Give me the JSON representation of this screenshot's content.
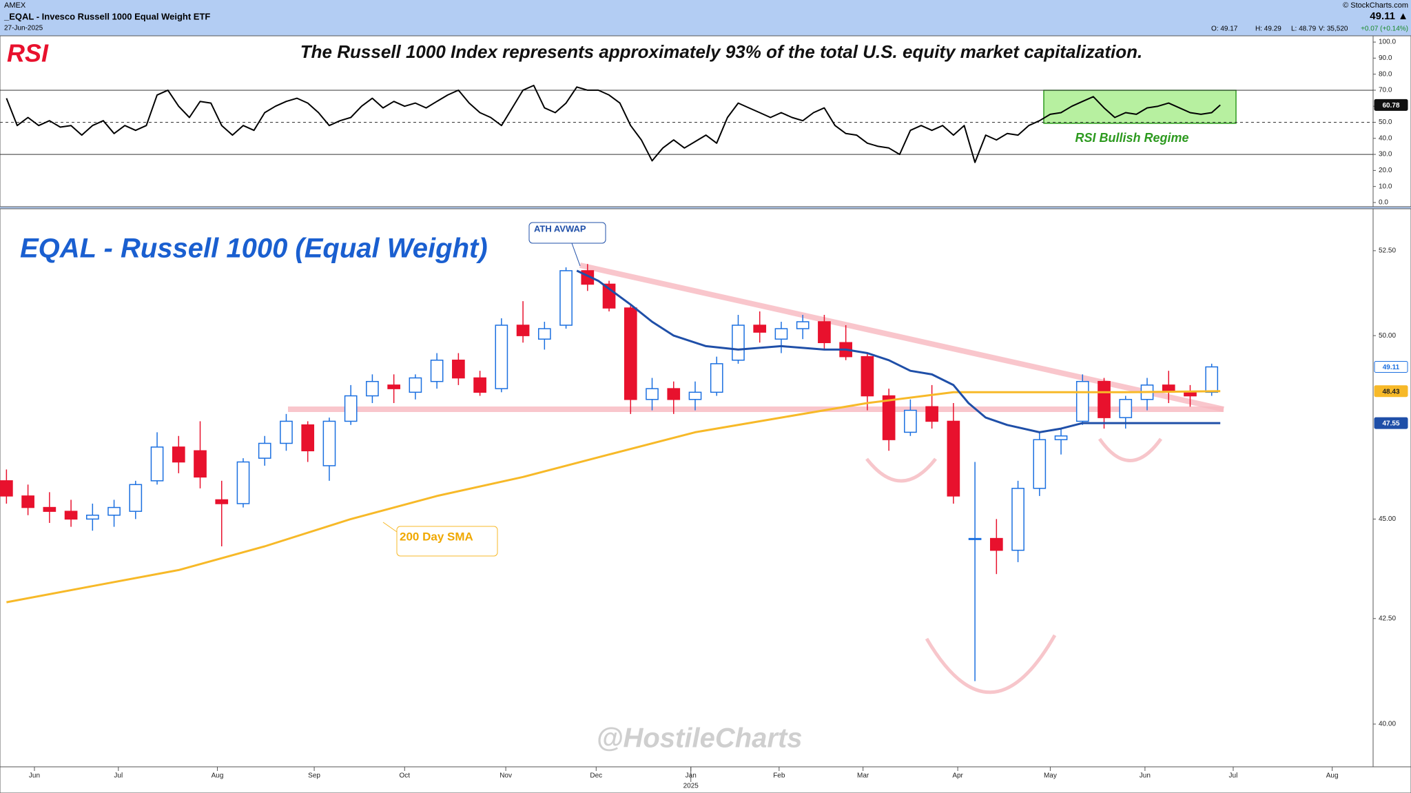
{
  "header": {
    "exchange": "AMEX",
    "symbol": "_EQAL - Invesco Russell 1000 Equal Weight ETF",
    "date": "27-Jun-2025",
    "source": "© StockCharts.com",
    "last": "49.11 ▲",
    "ohlcv": [
      "O: 49.17",
      "H: 49.29",
      "L: 48.79",
      "V: 35,520"
    ],
    "change": "+0.07 (+0.14%)"
  },
  "watermark": "@HostileCharts",
  "chart_data": [
    {
      "type": "line",
      "title": "RSI",
      "subtitle": "The Russell 1000 Index represents approximately 93% of the total U.S. equity market capitalization.",
      "annotation": "RSI Bullish Regime",
      "color": "#000000",
      "last_label": "60.78",
      "xlim": [
        -0.3,
        63.5
      ],
      "ylim": [
        -2.6,
        103.9
      ],
      "yticks": [
        {
          "value": 100,
          "label": "100.0"
        },
        {
          "value": 90,
          "label": "90.0"
        },
        {
          "value": 80,
          "label": "80.0"
        },
        {
          "value": 70,
          "label": "70.0"
        },
        {
          "value": 60,
          "label": "60.0"
        },
        {
          "value": 50,
          "label": "50.0"
        },
        {
          "value": 40,
          "label": "40.0"
        },
        {
          "value": 30,
          "label": "30.0"
        },
        {
          "value": 20,
          "label": "20.0"
        },
        {
          "value": 10,
          "label": "10.0"
        },
        {
          "value": 0,
          "label": "0.0"
        }
      ],
      "reference_lines": [
        70,
        50,
        30
      ],
      "reference_styles": [
        "solid",
        "dashed",
        "solid"
      ],
      "x": [
        0,
        0.5,
        1,
        1.5,
        2,
        2.5,
        3,
        3.5,
        4,
        4.5,
        5,
        5.5,
        6,
        6.5,
        7,
        7.5,
        8,
        8.5,
        9,
        9.5,
        10,
        10.5,
        11,
        11.5,
        12,
        12.5,
        13,
        13.5,
        14,
        14.5,
        15,
        15.5,
        16,
        16.5,
        17,
        17.5,
        18,
        18.5,
        19,
        19.5,
        20,
        20.5,
        21,
        21.5,
        22,
        22.5,
        23,
        23.5,
        24,
        24.5,
        25,
        25.5,
        26,
        26.5,
        27,
        27.5,
        28,
        28.5,
        29,
        29.5,
        30,
        30.5,
        31,
        31.5,
        32,
        32.5,
        33,
        33.5,
        34,
        34.5,
        35,
        35.5,
        36,
        36.5,
        37,
        37.5,
        38,
        38.5,
        39,
        39.5,
        40,
        40.5,
        41,
        41.5,
        42,
        42.5,
        43,
        43.5,
        44,
        44.5,
        45,
        45.5,
        46,
        46.5,
        47,
        47.5,
        48,
        48.5,
        49,
        49.5,
        50,
        50.5,
        51,
        51.5,
        52,
        52.5,
        53,
        53.5,
        54,
        54.5,
        55,
        55.5,
        56,
        56.4
      ],
      "values": [
        65,
        48,
        53,
        48,
        51,
        47,
        48,
        42,
        48,
        51,
        43,
        48,
        45,
        48,
        67,
        70,
        60,
        53,
        63,
        62,
        48,
        42,
        48,
        45,
        56,
        60,
        63,
        65,
        62,
        56,
        48,
        51,
        53,
        60,
        65,
        59,
        63,
        60,
        62,
        59,
        63,
        67,
        70,
        62,
        56,
        53,
        48,
        59,
        70,
        73,
        59,
        56,
        62,
        72,
        70,
        70,
        67,
        62,
        48,
        39,
        26,
        34,
        39,
        34,
        38,
        42,
        37,
        53,
        62,
        59,
        56,
        53,
        56,
        53,
        51,
        56,
        59,
        48,
        43,
        42,
        37,
        35,
        34,
        30,
        45,
        48,
        45,
        48,
        42,
        48,
        25,
        42,
        39,
        43,
        42,
        48,
        51,
        55,
        56,
        60,
        63,
        66,
        59,
        53,
        56,
        55,
        59,
        60,
        62,
        59,
        56,
        55,
        56,
        60.78
      ]
    },
    {
      "type": "candlestick",
      "title": "EQAL - Russell 1000 (Equal Weight)",
      "log_scale": true,
      "up_color": "#1a6fe0",
      "down_color": "#e8112d",
      "last_label": "49.11",
      "year_label": "2025",
      "xlim": [
        -0.3,
        63.5
      ],
      "ylim": [
        39.03,
        53.78
      ],
      "yticks": [
        {
          "value": 52.5,
          "label": "52.50"
        },
        {
          "value": 50,
          "label": "50.00"
        },
        {
          "value": 45,
          "label": "45.00"
        },
        {
          "value": 42.5,
          "label": "42.50"
        },
        {
          "value": 40,
          "label": "40.00"
        }
      ],
      "xticks": [
        {
          "value": 1.3,
          "label": "Jun"
        },
        {
          "value": 5.2,
          "label": "Jul"
        },
        {
          "value": 9.8,
          "label": "Aug"
        },
        {
          "value": 14.3,
          "label": "Sep"
        },
        {
          "value": 18.5,
          "label": "Oct"
        },
        {
          "value": 23.2,
          "label": "Nov"
        },
        {
          "value": 27.4,
          "label": "Dec"
        },
        {
          "value": 31.8,
          "label": "Jan"
        },
        {
          "value": 35.9,
          "label": "Feb"
        },
        {
          "value": 39.8,
          "label": "Mar"
        },
        {
          "value": 44.2,
          "label": "Apr"
        },
        {
          "value": 48.5,
          "label": "May"
        },
        {
          "value": 52.9,
          "label": "Jun"
        },
        {
          "value": 57.0,
          "label": "Jul"
        },
        {
          "value": 61.6,
          "label": "Aug"
        }
      ],
      "x": [
        0,
        1,
        2,
        3,
        4,
        5,
        6,
        7,
        8,
        9,
        10,
        11,
        12,
        13,
        14,
        15,
        16,
        17,
        18,
        19,
        20,
        21,
        22,
        23,
        24,
        25,
        26,
        27,
        28,
        29,
        30,
        31,
        32,
        33,
        34,
        35,
        36,
        37,
        38,
        39,
        40,
        41,
        42,
        43,
        44,
        45,
        46,
        47,
        48,
        49,
        50,
        51,
        52,
        53,
        54,
        55,
        56
      ],
      "open": [
        46.0,
        45.6,
        45.3,
        45.2,
        45.0,
        45.1,
        45.2,
        46.0,
        46.9,
        46.8,
        45.5,
        45.4,
        46.6,
        47.0,
        47.5,
        46.4,
        47.6,
        48.3,
        48.6,
        48.4,
        48.7,
        49.3,
        48.8,
        48.5,
        50.3,
        49.9,
        50.3,
        51.9,
        51.5,
        50.8,
        48.2,
        48.5,
        48.2,
        48.4,
        49.3,
        50.3,
        49.9,
        50.2,
        50.4,
        49.8,
        49.4,
        48.3,
        47.3,
        48.0,
        47.6,
        44.5,
        44.5,
        44.2,
        45.8,
        47.1,
        47.6,
        48.7,
        47.7,
        48.2,
        48.6,
        48.4,
        48.4
      ],
      "high": [
        46.3,
        45.9,
        45.7,
        45.5,
        45.4,
        45.5,
        46.0,
        47.3,
        47.2,
        47.6,
        46.0,
        46.6,
        47.2,
        47.8,
        47.6,
        47.7,
        48.6,
        48.9,
        48.9,
        48.9,
        49.5,
        49.5,
        49.0,
        50.5,
        51.0,
        50.4,
        52.0,
        52.1,
        51.6,
        50.9,
        48.8,
        48.7,
        48.7,
        49.4,
        50.6,
        50.7,
        50.4,
        50.6,
        50.6,
        50.3,
        49.5,
        48.5,
        48.2,
        48.6,
        48.1,
        46.5,
        45.0,
        46.0,
        47.3,
        47.4,
        48.9,
        48.8,
        48.3,
        48.8,
        49.0,
        48.6,
        49.2
      ],
      "low": [
        45.4,
        45.1,
        44.9,
        44.8,
        44.7,
        44.8,
        45.0,
        45.9,
        46.2,
        45.8,
        44.3,
        45.3,
        46.4,
        46.8,
        46.5,
        46.0,
        47.5,
        48.1,
        48.1,
        48.2,
        48.5,
        48.6,
        48.3,
        48.4,
        49.8,
        49.6,
        50.2,
        51.3,
        50.7,
        47.8,
        47.9,
        47.8,
        47.9,
        48.3,
        49.2,
        49.8,
        49.5,
        49.9,
        49.6,
        49.3,
        47.9,
        46.8,
        47.2,
        47.4,
        45.4,
        41.0,
        43.6,
        43.9,
        45.6,
        46.7,
        47.5,
        47.4,
        47.4,
        47.9,
        48.1,
        48.0,
        48.3
      ],
      "close": [
        45.6,
        45.3,
        45.2,
        45.0,
        45.1,
        45.3,
        45.9,
        46.9,
        46.5,
        46.1,
        45.4,
        46.5,
        47.0,
        47.6,
        46.8,
        47.6,
        48.3,
        48.7,
        48.5,
        48.8,
        49.3,
        48.8,
        48.4,
        50.3,
        50.0,
        50.2,
        51.9,
        51.5,
        50.8,
        48.2,
        48.5,
        48.2,
        48.4,
        49.2,
        50.3,
        50.1,
        50.2,
        50.4,
        49.8,
        49.4,
        48.3,
        47.1,
        47.9,
        47.6,
        45.6,
        44.5,
        44.2,
        45.8,
        47.1,
        47.2,
        48.7,
        47.7,
        48.2,
        48.6,
        48.4,
        48.3,
        49.11
      ],
      "lines": [
        {
          "name": "200 Day SMA",
          "color": "#f7b928",
          "last_label": "48.43",
          "x": [
            0,
            4,
            8,
            12,
            16,
            20,
            24,
            28,
            32,
            36,
            40,
            44,
            48,
            52,
            56.4
          ],
          "values": [
            42.9,
            43.3,
            43.7,
            44.3,
            45.0,
            45.6,
            46.1,
            46.7,
            47.3,
            47.7,
            48.1,
            48.4,
            48.4,
            48.4,
            48.43
          ]
        },
        {
          "name": "ATH AVWAP",
          "color": "#1f4fa8",
          "last_label": "47.55",
          "x": [
            26.5,
            27.5,
            29,
            30,
            31,
            32.5,
            34,
            36,
            38,
            39,
            40,
            41,
            42,
            43,
            44,
            44.7,
            45.5,
            46.5,
            48,
            49,
            50,
            56.4
          ],
          "values": [
            51.9,
            51.6,
            50.9,
            50.4,
            50.0,
            49.7,
            49.6,
            49.7,
            49.6,
            49.6,
            49.5,
            49.3,
            49.0,
            48.9,
            48.6,
            48.1,
            47.7,
            47.5,
            47.3,
            47.4,
            47.55,
            47.55
          ]
        }
      ]
    }
  ]
}
